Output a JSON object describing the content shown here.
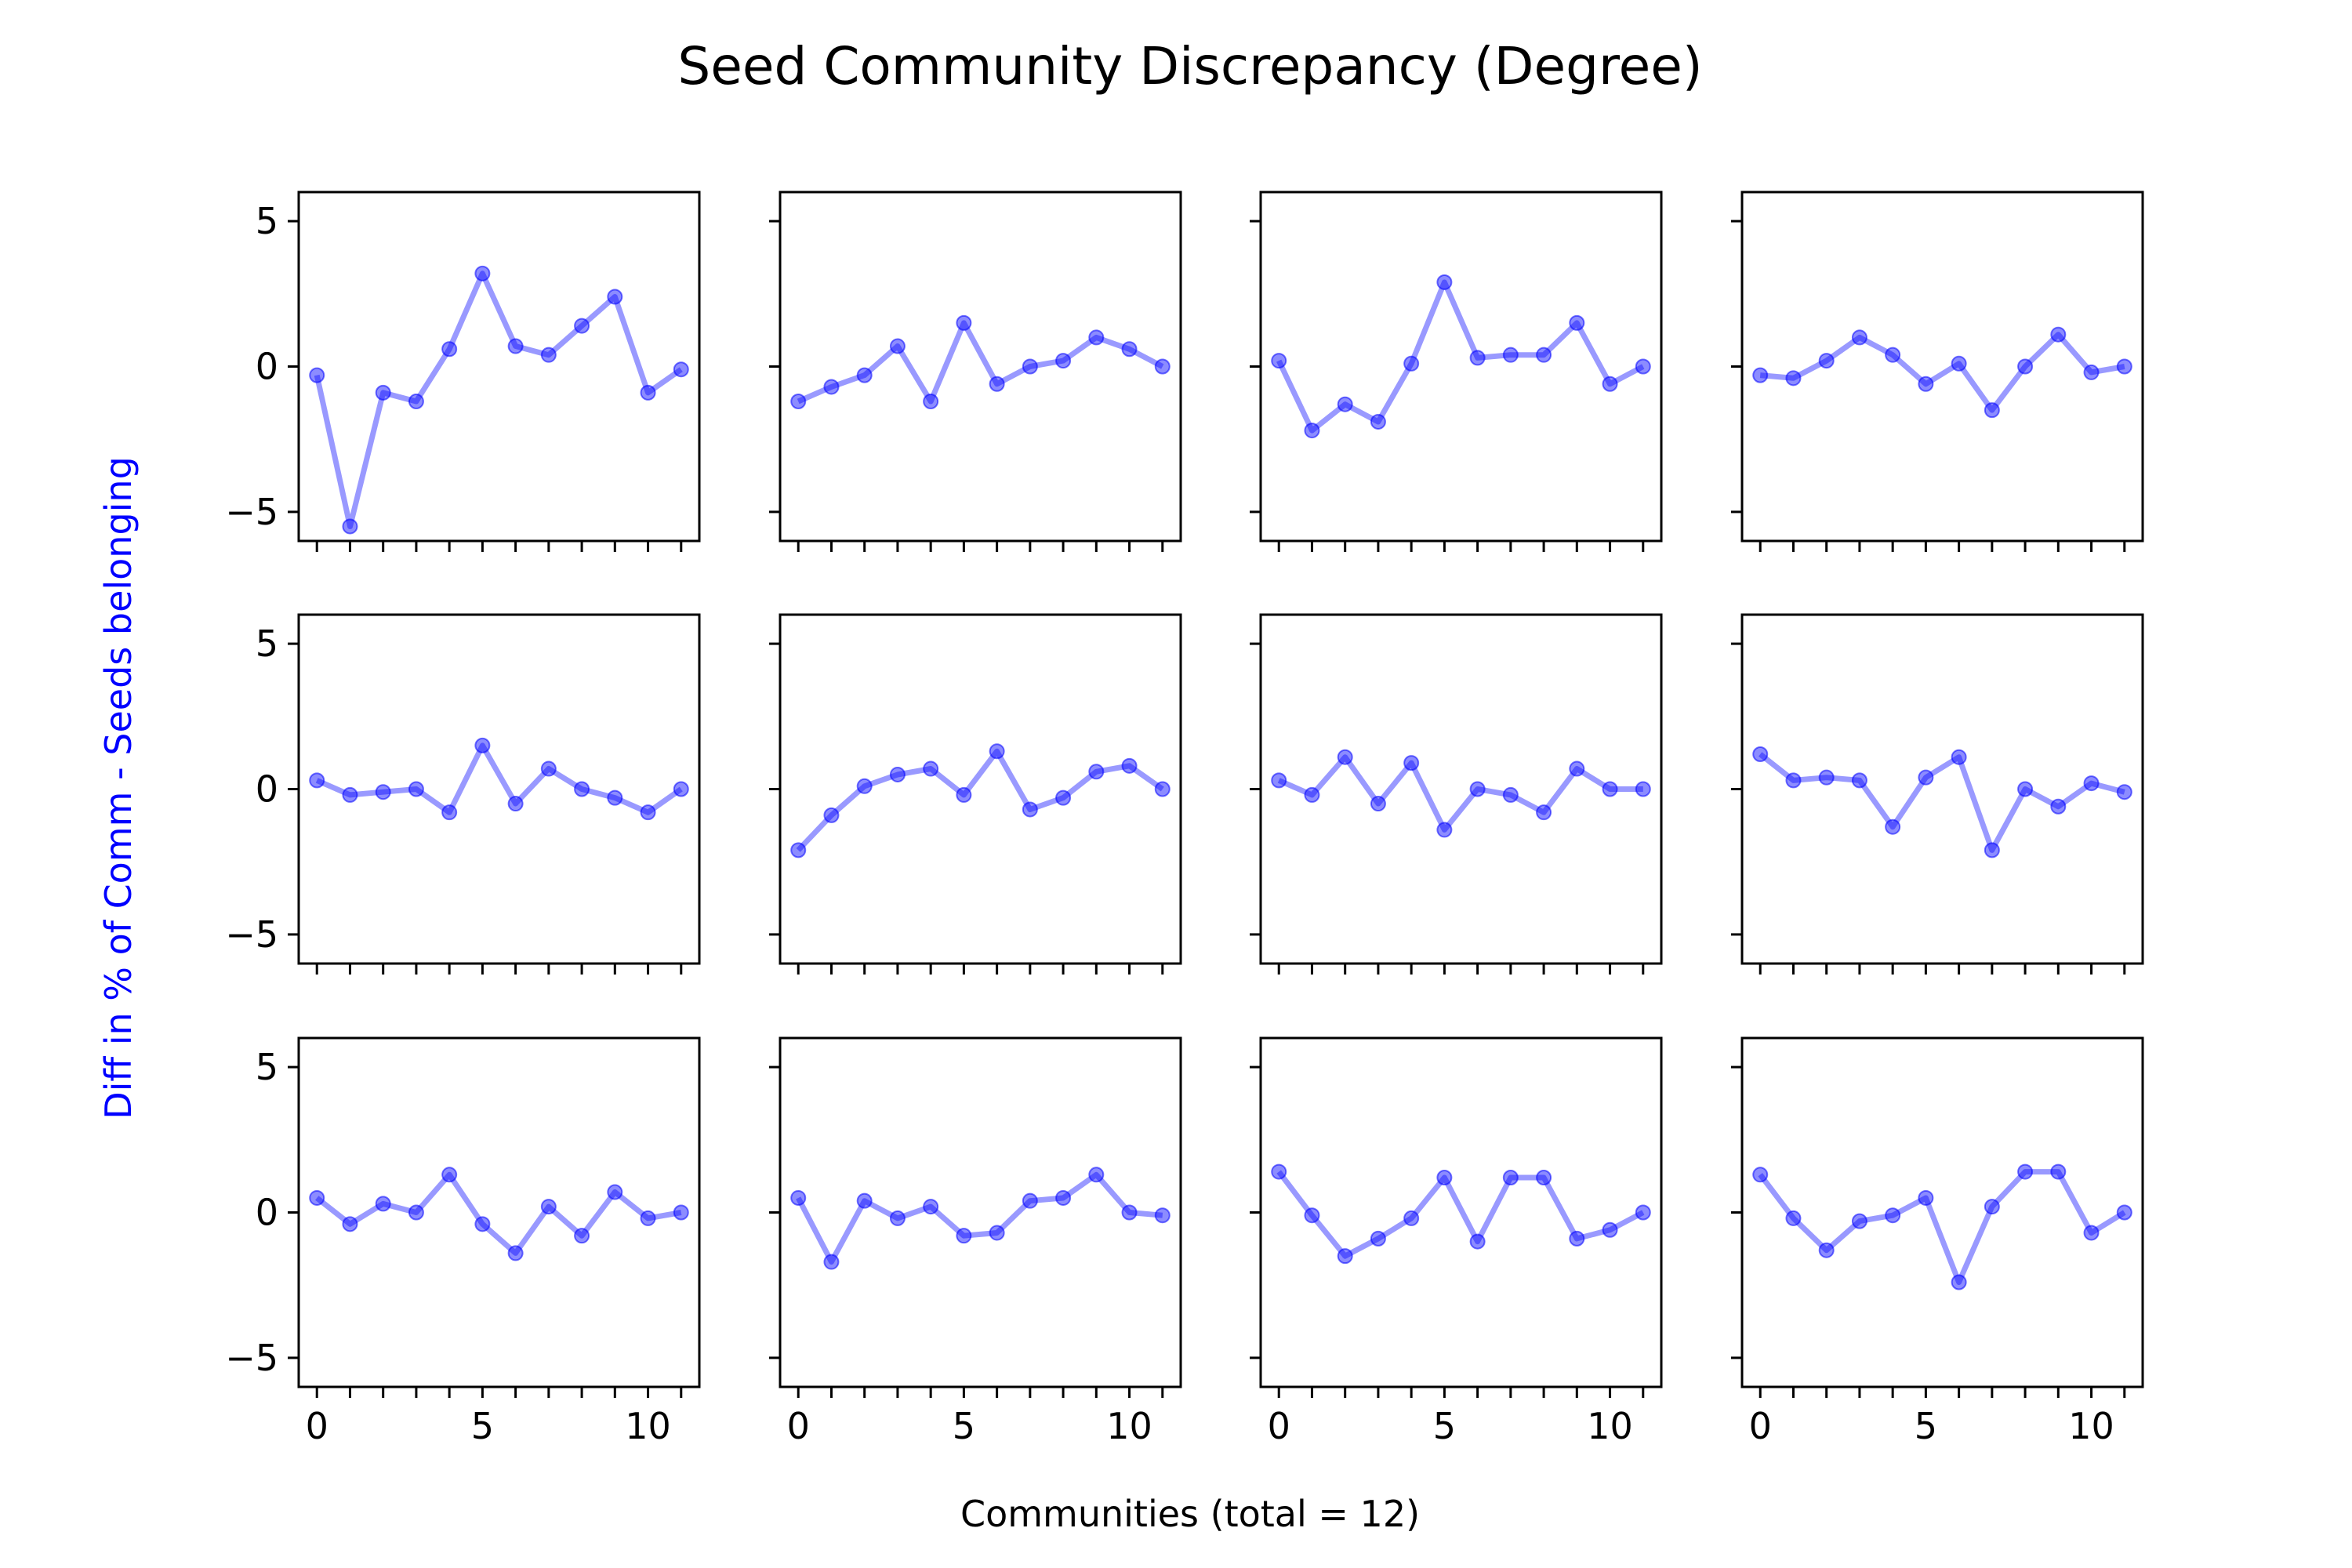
{
  "title": "Seed Community Discrepancy (Degree)",
  "xlabel": "Communities (total = 12)",
  "ylabel": "Diff in % of Comm - Seeds belonging",
  "colors": {
    "series": "#0000ff",
    "ylabel": "#0000ff",
    "text": "#000000"
  },
  "chart_data": {
    "type": "line",
    "grid": false,
    "layout": "3x4 small multiples, shared axes",
    "x": [
      0,
      1,
      2,
      3,
      4,
      5,
      6,
      7,
      8,
      9,
      10,
      11
    ],
    "xticks": [
      0,
      5,
      10
    ],
    "xtick_labels": [
      "0",
      "5",
      "10"
    ],
    "yticks": [
      5,
      0,
      -5
    ],
    "ytick_labels": [
      "5",
      "0",
      "−5"
    ],
    "xlim": [
      -0.55,
      11.55
    ],
    "ylim": [
      -6,
      6
    ],
    "panels": [
      {
        "values": [
          -0.3,
          -5.5,
          -0.9,
          -1.2,
          0.6,
          3.2,
          0.7,
          0.4,
          1.4,
          2.4,
          -0.9,
          -0.1
        ]
      },
      {
        "values": [
          -1.2,
          -0.7,
          -0.3,
          0.7,
          -1.2,
          1.5,
          -0.6,
          0.0,
          0.2,
          1.0,
          0.6,
          0.0
        ]
      },
      {
        "values": [
          0.2,
          -2.2,
          -1.3,
          -1.9,
          0.1,
          2.9,
          0.3,
          0.4,
          0.4,
          1.5,
          -0.6,
          0.0
        ]
      },
      {
        "values": [
          -0.3,
          -0.4,
          0.2,
          1.0,
          0.4,
          -0.6,
          0.1,
          -1.5,
          0.0,
          1.1,
          -0.2,
          0.0
        ]
      },
      {
        "values": [
          0.3,
          -0.2,
          -0.1,
          0.0,
          -0.8,
          1.5,
          -0.5,
          0.7,
          0.0,
          -0.3,
          -0.8,
          0.0
        ]
      },
      {
        "values": [
          -2.1,
          -0.9,
          0.1,
          0.5,
          0.7,
          -0.2,
          1.3,
          -0.7,
          -0.3,
          0.6,
          0.8,
          0.0
        ]
      },
      {
        "values": [
          0.3,
          -0.2,
          1.1,
          -0.5,
          0.9,
          -1.4,
          0.0,
          -0.2,
          -0.8,
          0.7,
          0.0,
          0.0
        ]
      },
      {
        "values": [
          1.2,
          0.3,
          0.4,
          0.3,
          -1.3,
          0.4,
          1.1,
          -2.1,
          0.0,
          -0.6,
          0.2,
          -0.1
        ]
      },
      {
        "values": [
          0.5,
          -0.4,
          0.3,
          0.0,
          1.3,
          -0.4,
          -1.4,
          0.2,
          -0.8,
          0.7,
          -0.2,
          0.0
        ]
      },
      {
        "values": [
          0.5,
          -1.7,
          0.4,
          -0.2,
          0.2,
          -0.8,
          -0.7,
          0.4,
          0.5,
          1.3,
          0.0,
          -0.1
        ]
      },
      {
        "values": [
          1.4,
          -0.1,
          -1.5,
          -0.9,
          -0.2,
          1.2,
          -1.0,
          1.2,
          1.2,
          -0.9,
          -0.6,
          0.0
        ]
      },
      {
        "values": [
          1.3,
          -0.2,
          -1.3,
          -0.3,
          -0.1,
          0.5,
          -2.4,
          0.2,
          1.4,
          1.4,
          -0.7,
          0.0
        ]
      }
    ]
  }
}
